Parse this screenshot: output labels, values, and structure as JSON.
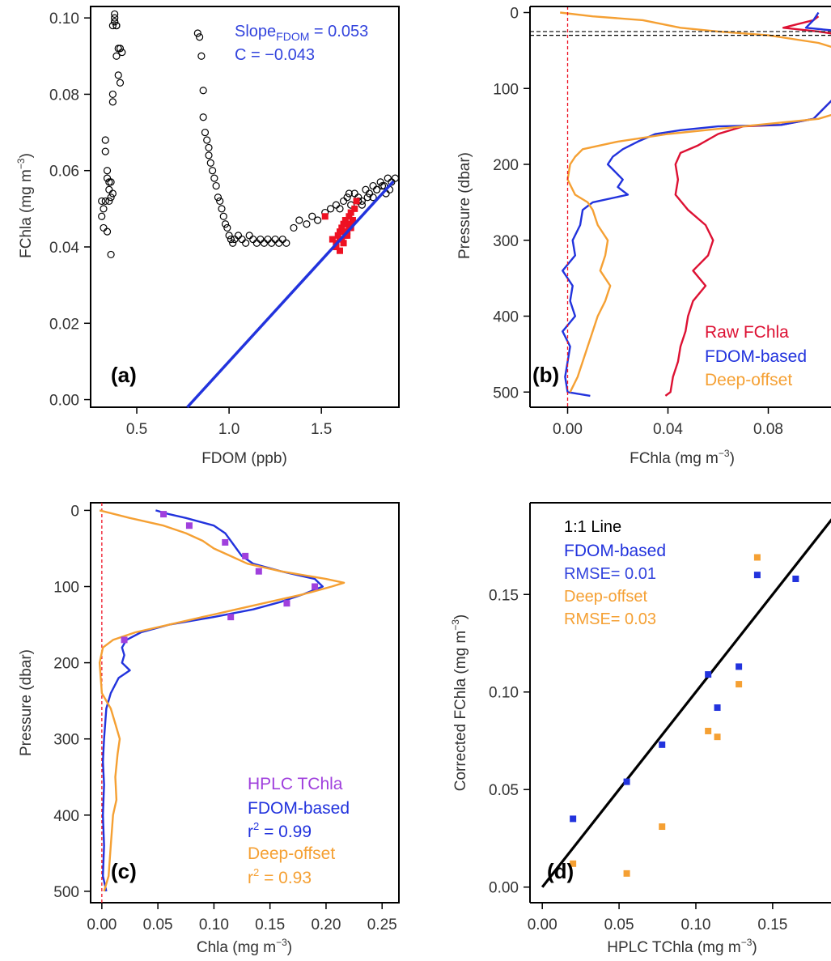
{
  "chart_data": [
    {
      "panel_label": "(a)",
      "type": "scatter",
      "xlabel": "FDOM (ppb)",
      "ylabel": "FChla (mg m",
      "ylabel_sup": "−3",
      "ylabel_end": ")",
      "xlim": [
        0.25,
        1.92
      ],
      "ylim": [
        -0.002,
        0.103
      ],
      "xticks": [
        0.5,
        1.0,
        1.5
      ],
      "xtick_labels": [
        "0.5",
        "1.0",
        "1.5"
      ],
      "yticks": [
        0.0,
        0.02,
        0.04,
        0.06,
        0.08,
        0.1
      ],
      "ytick_labels": [
        "0.00",
        "0.02",
        "0.04",
        "0.06",
        "0.08",
        "0.10"
      ],
      "annotation_slope_pre": "Slope",
      "annotation_slope_sub": "FDOM",
      "annotation_slope_post": " = 0.053",
      "annotation_c": "C = −0.043",
      "fit_line": {
        "slope": 0.053,
        "intercept": -0.043,
        "color": "#2233dd"
      },
      "series": [
        {
          "marker": "circle-open",
          "color": "#000000",
          "x": [
            0.31,
            0.31,
            0.32,
            0.32,
            0.33,
            0.33,
            0.34,
            0.34,
            0.35,
            0.35,
            0.35,
            0.36,
            0.36,
            0.37,
            0.37,
            0.37,
            0.38,
            0.38,
            0.38,
            0.39,
            0.39,
            0.4,
            0.4,
            0.41,
            0.41,
            0.42,
            0.33,
            0.34,
            0.36,
            0.37,
            0.38,
            0.39,
            0.83,
            0.84,
            0.85,
            0.86,
            0.86,
            0.87,
            0.88,
            0.89,
            0.89,
            0.9,
            0.91,
            0.92,
            0.93,
            0.94,
            0.95,
            0.96,
            0.97,
            0.98,
            0.99,
            1.0,
            1.01,
            1.02,
            1.03,
            1.05,
            1.07,
            1.09,
            1.11,
            1.13,
            1.15,
            1.17,
            1.19,
            1.21,
            1.23,
            1.25,
            1.27,
            1.29,
            1.31,
            1.35,
            1.38,
            1.42,
            1.45,
            1.48,
            1.52,
            1.55,
            1.58,
            1.6,
            1.62,
            1.64,
            1.66,
            1.68,
            1.7,
            1.72,
            1.74,
            1.76,
            1.78,
            1.8,
            1.82,
            1.84,
            1.86,
            1.88,
            1.9,
            1.65,
            1.7,
            1.75,
            1.8,
            1.85,
            1.72,
            1.78,
            1.83,
            1.87
          ],
          "y": [
            0.048,
            0.052,
            0.05,
            0.045,
            0.065,
            0.068,
            0.06,
            0.044,
            0.055,
            0.057,
            0.052,
            0.053,
            0.038,
            0.078,
            0.08,
            0.098,
            0.101,
            0.1,
            0.099,
            0.098,
            0.09,
            0.092,
            0.085,
            0.083,
            0.092,
            0.091,
            0.052,
            0.058,
            0.057,
            0.054,
            0.099,
            0.098,
            0.096,
            0.095,
            0.09,
            0.081,
            0.074,
            0.07,
            0.068,
            0.066,
            0.064,
            0.062,
            0.06,
            0.058,
            0.056,
            0.053,
            0.052,
            0.05,
            0.048,
            0.046,
            0.045,
            0.043,
            0.042,
            0.041,
            0.042,
            0.043,
            0.042,
            0.041,
            0.043,
            0.042,
            0.041,
            0.042,
            0.041,
            0.042,
            0.041,
            0.042,
            0.041,
            0.042,
            0.041,
            0.045,
            0.047,
            0.046,
            0.048,
            0.047,
            0.049,
            0.05,
            0.051,
            0.05,
            0.052,
            0.053,
            0.051,
            0.054,
            0.053,
            0.052,
            0.055,
            0.054,
            0.056,
            0.055,
            0.057,
            0.056,
            0.058,
            0.057,
            0.058,
            0.054,
            0.052,
            0.053,
            0.055,
            0.054,
            0.051,
            0.053,
            0.056,
            0.055
          ]
        },
        {
          "marker": "square-filled",
          "color": "#ee1122",
          "x": [
            1.52,
            1.56,
            1.58,
            1.58,
            1.59,
            1.6,
            1.6,
            1.61,
            1.61,
            1.62,
            1.62,
            1.63,
            1.63,
            1.64,
            1.64,
            1.65,
            1.65,
            1.66,
            1.66,
            1.67,
            1.68,
            1.69,
            1.6,
            1.62,
            1.64,
            1.66
          ],
          "y": [
            0.048,
            0.042,
            0.041,
            0.04,
            0.043,
            0.039,
            0.044,
            0.042,
            0.045,
            0.041,
            0.046,
            0.043,
            0.047,
            0.044,
            0.046,
            0.045,
            0.048,
            0.046,
            0.049,
            0.047,
            0.05,
            0.052,
            0.042,
            0.044,
            0.043,
            0.045
          ]
        }
      ]
    },
    {
      "panel_label": "(b)",
      "type": "line",
      "xlabel": "FChla (mg m",
      "xlabel_sup": "−3",
      "xlabel_end": ")",
      "ylabel": "Pressure (dbar)",
      "xlim": [
        -0.015,
        0.105
      ],
      "ylim": [
        520,
        -8
      ],
      "xticks": [
        0.0,
        0.04,
        0.08
      ],
      "xtick_labels": [
        "0.00",
        "0.04",
        "0.08"
      ],
      "yticks": [
        0,
        100,
        200,
        300,
        400,
        500
      ],
      "ytick_labels": [
        "0",
        "100",
        "200",
        "300",
        "400",
        "500"
      ],
      "zero_line": {
        "x": 0.0,
        "color": "#ee1122",
        "style": "dashed"
      },
      "mld_lines": [
        {
          "y": 25,
          "color": "#333333"
        },
        {
          "y": 30,
          "color": "#000000"
        }
      ],
      "series": [
        {
          "name": "Raw FChla",
          "color": "#dd1133",
          "y": [
            5,
            10,
            15,
            20,
            25,
            30,
            40,
            60,
            100,
            140,
            148,
            150,
            160,
            175,
            185,
            200,
            220,
            240,
            260,
            280,
            300,
            320,
            340,
            360,
            380,
            400,
            420,
            440,
            460,
            480,
            500,
            505
          ],
          "x": [
            0.1,
            0.098,
            0.092,
            0.086,
            0.1,
            0.11,
            0.13,
            0.12,
            0.11,
            0.098,
            0.085,
            0.07,
            0.06,
            0.052,
            0.045,
            0.043,
            0.044,
            0.043,
            0.048,
            0.055,
            0.058,
            0.056,
            0.05,
            0.055,
            0.05,
            0.048,
            0.047,
            0.045,
            0.044,
            0.042,
            0.041,
            0.039
          ]
        },
        {
          "name": "FDOM-based",
          "color": "#2233dd",
          "y": [
            0,
            10,
            20,
            25,
            30,
            60,
            100,
            140,
            148,
            150,
            155,
            160,
            170,
            180,
            190,
            200,
            210,
            220,
            230,
            240,
            250,
            260,
            280,
            300,
            320,
            340,
            360,
            380,
            400,
            420,
            440,
            460,
            480,
            500,
            505
          ],
          "x": [
            0.1,
            0.098,
            0.095,
            0.11,
            0.13,
            0.12,
            0.11,
            0.098,
            0.085,
            0.06,
            0.045,
            0.035,
            0.028,
            0.022,
            0.018,
            0.016,
            0.019,
            0.022,
            0.02,
            0.024,
            0.01,
            0.006,
            0.005,
            0.002,
            0.003,
            -0.002,
            0.002,
            0.001,
            0.003,
            -0.002,
            0.001,
            0.0,
            -0.001,
            0.0,
            0.009
          ]
        },
        {
          "name": "Deep-offset",
          "color": "#f5a033",
          "y": [
            0,
            5,
            10,
            20,
            25,
            30,
            40,
            50,
            60,
            100,
            130,
            140,
            150,
            160,
            170,
            180,
            190,
            200,
            220,
            240,
            250,
            260,
            280,
            300,
            320,
            340,
            360,
            380,
            400,
            420,
            440,
            460,
            480,
            500
          ],
          "x": [
            -0.003,
            0.01,
            0.03,
            0.045,
            0.06,
            0.08,
            0.1,
            0.11,
            0.12,
            0.12,
            0.11,
            0.1,
            0.07,
            0.04,
            0.02,
            0.006,
            0.003,
            0.001,
            0.0,
            0.003,
            0.008,
            0.01,
            0.012,
            0.016,
            0.015,
            0.013,
            0.017,
            0.015,
            0.012,
            0.01,
            0.008,
            0.006,
            0.004,
            0.001
          ]
        }
      ],
      "legend": [
        {
          "text": "Raw FChla",
          "color": "#dd1133"
        },
        {
          "text": "FDOM-based",
          "color": "#2233dd"
        },
        {
          "text": "Deep-offset",
          "color": "#f5a033"
        }
      ]
    },
    {
      "panel_label": "(c)",
      "type": "line",
      "xlabel": "Chla (mg m",
      "xlabel_sup": "−3",
      "xlabel_end": ")",
      "ylabel": "Pressure (dbar)",
      "xlim": [
        -0.01,
        0.265
      ],
      "ylim": [
        515,
        -10
      ],
      "xticks": [
        0.0,
        0.05,
        0.1,
        0.15,
        0.2,
        0.25
      ],
      "xtick_labels": [
        "0.00",
        "0.05",
        "0.10",
        "0.15",
        "0.20",
        "0.25"
      ],
      "yticks": [
        0,
        100,
        200,
        300,
        400,
        500
      ],
      "ytick_labels": [
        "0",
        "100",
        "200",
        "300",
        "400",
        "500"
      ],
      "zero_line": {
        "x": 0.0,
        "color": "#ee1122",
        "style": "dashed"
      },
      "series": [
        {
          "name": "FDOM-based",
          "color": "#2233dd",
          "y": [
            0,
            5,
            10,
            20,
            30,
            40,
            50,
            60,
            70,
            80,
            90,
            100,
            110,
            120,
            130,
            140,
            150,
            160,
            170,
            180,
            190,
            200,
            210,
            220,
            240,
            260,
            280,
            300,
            330,
            360,
            400,
            440,
            480,
            500
          ],
          "x": [
            0.048,
            0.06,
            0.075,
            0.1,
            0.11,
            0.115,
            0.12,
            0.125,
            0.135,
            0.16,
            0.19,
            0.197,
            0.18,
            0.16,
            0.135,
            0.1,
            0.06,
            0.035,
            0.022,
            0.018,
            0.02,
            0.018,
            0.025,
            0.015,
            0.008,
            0.004,
            0.003,
            0.002,
            0.001,
            0.002,
            0.001,
            0.002,
            0.001,
            0.004
          ]
        },
        {
          "name": "Deep-offset",
          "color": "#f5a033",
          "y": [
            0,
            10,
            20,
            30,
            40,
            50,
            60,
            70,
            80,
            90,
            95,
            100,
            110,
            120,
            130,
            140,
            150,
            160,
            170,
            180,
            200,
            220,
            240,
            260,
            280,
            300,
            320,
            350,
            380,
            400,
            440,
            480,
            500
          ],
          "x": [
            -0.002,
            0.025,
            0.055,
            0.075,
            0.09,
            0.1,
            0.115,
            0.13,
            0.16,
            0.2,
            0.216,
            0.205,
            0.18,
            0.15,
            0.12,
            0.09,
            0.06,
            0.03,
            0.01,
            0.001,
            -0.002,
            -0.001,
            0.0,
            0.008,
            0.012,
            0.016,
            0.014,
            0.012,
            0.013,
            0.01,
            0.008,
            0.006,
            0.002
          ]
        },
        {
          "name": "HPLC TChla",
          "color": "#a040dd",
          "marker": "square-filled",
          "points_only": true,
          "x": [
            0.055,
            0.078,
            0.11,
            0.128,
            0.14,
            0.19,
            0.165,
            0.115,
            0.02
          ],
          "y": [
            5,
            20,
            42,
            60,
            80,
            100,
            122,
            140,
            170
          ]
        }
      ],
      "legend": [
        {
          "text": "HPLC TChla",
          "color": "#a040dd"
        },
        {
          "text": "FDOM-based",
          "color": "#2233dd"
        },
        {
          "text": "r",
          "sup": "2",
          "rest": " = 0.99",
          "color": "#2233dd"
        },
        {
          "text": "Deep-offset",
          "color": "#f5a033"
        },
        {
          "text": "r",
          "sup": "2",
          "rest": " = 0.93",
          "color": "#f5a033"
        }
      ]
    },
    {
      "panel_label": "(d)",
      "type": "scatter",
      "xlabel": "HPLC TChla (mg m",
      "xlabel_sup": "−3",
      "xlabel_end": ")",
      "ylabel": "Corrected FChla (mg m",
      "ylabel_sup": "−3",
      "ylabel_end": ")",
      "xlim": [
        -0.008,
        0.188
      ],
      "ylim": [
        -0.008,
        0.197
      ],
      "xticks": [
        0.0,
        0.05,
        0.1,
        0.15
      ],
      "xtick_labels": [
        "0.00",
        "0.05",
        "0.10",
        "0.15"
      ],
      "yticks": [
        0.0,
        0.05,
        0.1,
        0.15
      ],
      "ytick_labels": [
        "0.00",
        "0.05",
        "0.10",
        "0.15"
      ],
      "one_to_one_line": {
        "from": 0.0,
        "to": 0.19,
        "color": "#000000"
      },
      "series": [
        {
          "name": "FDOM-based",
          "color": "#2233dd",
          "marker": "square-filled",
          "x": [
            0.02,
            0.055,
            0.078,
            0.108,
            0.114,
            0.128,
            0.14,
            0.165
          ],
          "y": [
            0.035,
            0.054,
            0.073,
            0.109,
            0.092,
            0.113,
            0.16,
            0.158
          ]
        },
        {
          "name": "Deep-offset",
          "color": "#f5a033",
          "marker": "square-filled",
          "x": [
            0.02,
            0.055,
            0.078,
            0.108,
            0.114,
            0.128,
            0.14
          ],
          "y": [
            0.012,
            0.007,
            0.031,
            0.08,
            0.077,
            0.104,
            0.169
          ]
        }
      ],
      "legend": [
        {
          "text": "1:1 Line",
          "color": "#000000"
        },
        {
          "text": "FDOM-based",
          "color": "#2233dd"
        },
        {
          "text": "RMSE= 0.01",
          "color": "#2233dd"
        },
        {
          "text": "Deep-offset",
          "color": "#f5a033"
        },
        {
          "text": "RMSE= 0.03",
          "color": "#f5a033"
        }
      ]
    }
  ]
}
